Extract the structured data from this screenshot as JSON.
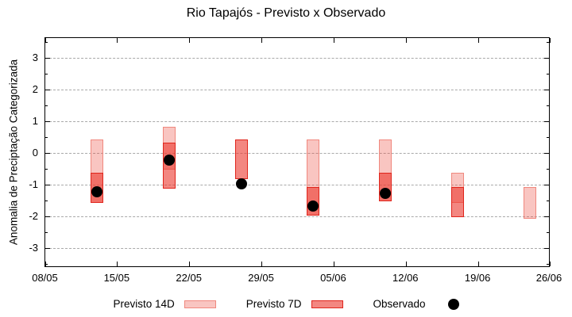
{
  "title": "Rio Tapajós - Previsto x Observado",
  "ylabel": "Anomalia de Preciptação Categorizada",
  "legend": {
    "items": [
      {
        "label": "Previsto 14D",
        "marker": "pale-pink-range-box"
      },
      {
        "label": "Previsto 7D",
        "marker": "red-range-box"
      },
      {
        "label": "Observado",
        "marker": "black-dot"
      }
    ]
  },
  "chart_data": {
    "type": "bar",
    "subtype": "floating vertical range bars (forecast envelopes) with observed scatter dots",
    "title": "Rio Tapajós - Previsto x Observado",
    "xlabel": "",
    "ylabel": "Anomalia de Preciptação Categorizada",
    "ylim": [
      -3.61,
      3.64
    ],
    "x_domain_dates": [
      "08/05",
      "26/06"
    ],
    "x_tick_labels": [
      "08/05",
      "15/05",
      "22/05",
      "29/05",
      "05/06",
      "12/06",
      "19/06",
      "26/06"
    ],
    "y_tick_labels": [
      "3",
      "2",
      "1",
      "0",
      "-1",
      "-2",
      "-3"
    ],
    "y_minor_tick_step": 0.5,
    "grid": "horizontal dashed gridlines at integer y values",
    "legend_position": "below chart, centered",
    "x_dates": [
      "13/05",
      "20/05",
      "27/05",
      "03/06",
      "10/06",
      "17/06",
      "24/06"
    ],
    "series": [
      {
        "name": "Previsto 14D",
        "type": "range",
        "values": [
          [
            -1.55,
            0.45
          ],
          [
            -0.5,
            0.85
          ],
          null,
          [
            -1.95,
            0.45
          ],
          [
            -1.5,
            0.45
          ],
          [
            -1.55,
            -0.6
          ],
          [
            -2.05,
            -1.05
          ]
        ]
      },
      {
        "name": "Previsto 7D",
        "type": "range",
        "values": [
          [
            -1.55,
            -0.6
          ],
          [
            -1.1,
            0.35
          ],
          [
            -0.8,
            0.45
          ],
          [
            -1.95,
            -1.05
          ],
          [
            -1.5,
            -0.6
          ],
          [
            -2.0,
            -1.05
          ],
          null
        ]
      },
      {
        "name": "Observado",
        "type": "scatter",
        "values": [
          -1.2,
          -0.2,
          -0.95,
          -1.65,
          -1.25,
          null,
          null
        ]
      }
    ],
    "colors": {
      "p14_fill": "rgba(235,62,50,0.30)",
      "p14_border": "#f0887e",
      "p7_fill": "rgba(235,55,45,0.60)",
      "p7_border": "#e0251c",
      "observed": "#000000",
      "grid": "#a9a9a9",
      "axis": "#000000"
    }
  }
}
